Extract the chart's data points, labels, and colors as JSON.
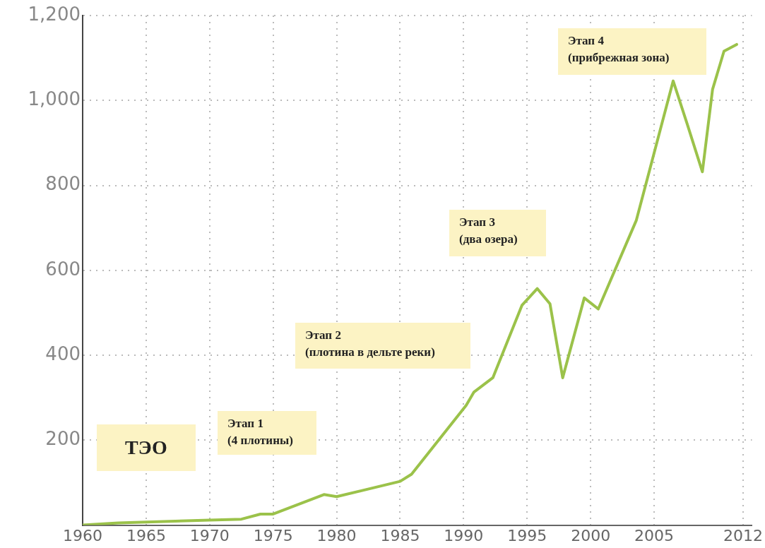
{
  "chart_data": {
    "type": "line",
    "x": [
      1960,
      1962.8,
      1970,
      1972.5,
      1974,
      1975,
      1979,
      1980,
      1985,
      1985.9,
      1990.2,
      1990.8,
      1992.3,
      1994.6,
      1995.8,
      1996.8,
      1997.8,
      1999.5,
      2000.6,
      2003.6,
      2006.5,
      2007.6,
      2008.8,
      2009.6,
      2010.5,
      2011.5
    ],
    "series": [
      {
        "color": "#9bc24a",
        "values": [
          0,
          5,
          12,
          14,
          26,
          26,
          72,
          67,
          103,
          120,
          282,
          313,
          347,
          518,
          557,
          521,
          347,
          535,
          509,
          718,
          1046,
          945,
          832,
          1026,
          1116,
          1132
        ]
      }
    ],
    "xlim": [
      1960,
      2012.7
    ],
    "xticks": [
      1960,
      1965,
      1970,
      1975,
      1980,
      1985,
      1990,
      1995,
      2000,
      2005,
      2012
    ],
    "ylim": [
      0,
      1200
    ],
    "yticks": [
      {
        "value": 0,
        "label": null
      },
      {
        "value": 200,
        "label": "200"
      },
      {
        "value": 400,
        "label": "400"
      },
      {
        "value": 600,
        "label": "600"
      },
      {
        "value": 800,
        "label": "800"
      },
      {
        "value": 1000,
        "label": "1,000"
      },
      {
        "value": 1200,
        "label": "1,200"
      }
    ],
    "grid": true,
    "legend": false,
    "marker": "none",
    "line_style": "solid",
    "annotations": [
      "ТЭО",
      "Этап 1\n(4 плотины)",
      "Этап 2\n(плотина в дельте реки)",
      "Этап 3\n(два озера)",
      "Этап 4\n(прибрежная зона)"
    ]
  }
}
